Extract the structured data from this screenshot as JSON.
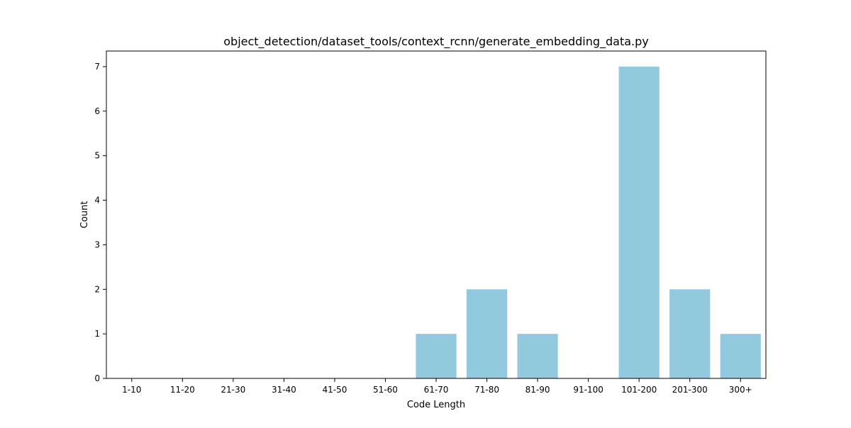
{
  "chart_data": {
    "type": "bar",
    "title": "object_detection/dataset_tools/context_rcnn/generate_embedding_data.py",
    "xlabel": "Code Length",
    "ylabel": "Count",
    "categories": [
      "1-10",
      "11-20",
      "21-30",
      "31-40",
      "41-50",
      "51-60",
      "61-70",
      "71-80",
      "81-90",
      "91-100",
      "101-200",
      "201-300",
      "300+"
    ],
    "values": [
      0,
      0,
      0,
      0,
      0,
      0,
      1,
      2,
      1,
      0,
      7,
      2,
      1
    ],
    "ylim": [
      0,
      7.35
    ],
    "yticks": [
      0,
      1,
      2,
      3,
      4,
      5,
      6,
      7
    ],
    "bar_color": "#92c9df",
    "grid": false,
    "legend": "none"
  }
}
